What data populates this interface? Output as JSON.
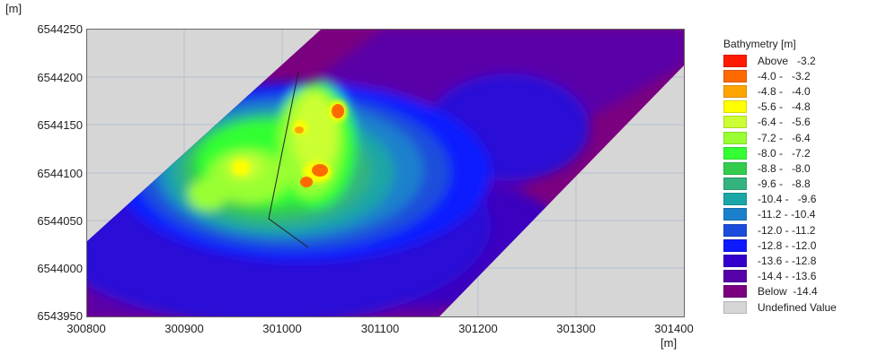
{
  "axis": {
    "y_unit": "[m]",
    "x_unit": "[m]",
    "y_ticks": [
      "6544250",
      "6544200",
      "6544150",
      "6544100",
      "6544050",
      "6544000",
      "6543950"
    ],
    "x_ticks": [
      "300800",
      "300900",
      "301000",
      "301100",
      "301200",
      "301300",
      "301400"
    ]
  },
  "legend": {
    "title": "Bathymetry [m]",
    "items": [
      {
        "label": "Above   -3.2",
        "color": "#ff1a00"
      },
      {
        "label": "-4.0 -   -3.2",
        "color": "#ff6a00"
      },
      {
        "label": "-4.8 -   -4.0",
        "color": "#ffa500"
      },
      {
        "label": "-5.6 -   -4.8",
        "color": "#ffff00"
      },
      {
        "label": "-6.4 -   -5.6",
        "color": "#ccff33"
      },
      {
        "label": "-7.2 -   -6.4",
        "color": "#99ff33"
      },
      {
        "label": "-8.0 -   -7.2",
        "color": "#33ff33"
      },
      {
        "label": "-8.8 -   -8.0",
        "color": "#33cc4d"
      },
      {
        "label": "-9.6 -   -8.8",
        "color": "#33b380"
      },
      {
        "label": "-10.4 -   -9.6",
        "color": "#1aa6a6"
      },
      {
        "label": "-11.2 - -10.4",
        "color": "#1a80cc"
      },
      {
        "label": "-12.0 - -11.2",
        "color": "#1a4ddb"
      },
      {
        "label": "-12.8 - -12.0",
        "color": "#0d1aff"
      },
      {
        "label": "-13.6 - -12.8",
        "color": "#3300cc"
      },
      {
        "label": "-14.4 - -13.6",
        "color": "#5500a8"
      },
      {
        "label": "Below  -14.4",
        "color": "#7a0080"
      },
      {
        "label": "Undefined Value",
        "color": "#d6d6d6"
      }
    ]
  }
}
